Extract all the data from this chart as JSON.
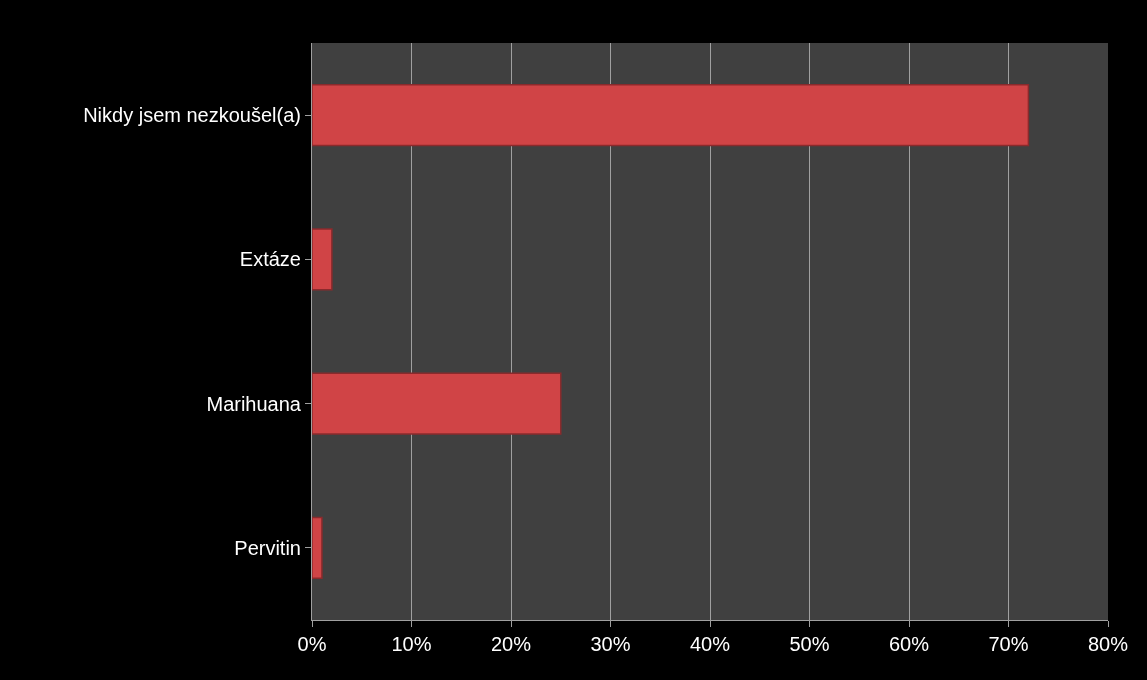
{
  "chart_data": {
    "type": "bar",
    "orientation": "horizontal",
    "categories": [
      "Nikdy jsem nezkoušel(a)",
      "Extáze",
      "Marihuana",
      "Pervitin"
    ],
    "values": [
      72,
      2,
      25,
      1
    ],
    "color": "#d04446",
    "xlim": [
      0,
      80
    ],
    "xticks": [
      {
        "value": 0,
        "label": "0%"
      },
      {
        "value": 10,
        "label": "10%"
      },
      {
        "value": 20,
        "label": "20%"
      },
      {
        "value": 30,
        "label": "30%"
      },
      {
        "value": 40,
        "label": "40%"
      },
      {
        "value": 50,
        "label": "50%"
      },
      {
        "value": 60,
        "label": "60%"
      },
      {
        "value": 70,
        "label": "70%"
      },
      {
        "value": 80,
        "label": "80%"
      }
    ],
    "grid": "x"
  }
}
